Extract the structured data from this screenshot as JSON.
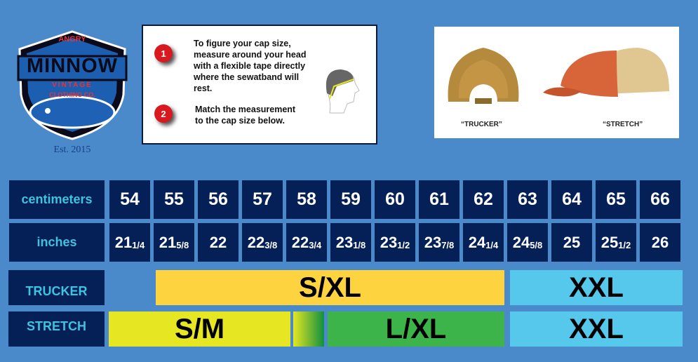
{
  "logo": {
    "line1": "ANGRY",
    "line2": "MINNOW",
    "line3": "VINTAGE",
    "line4": "CLOTHING CO.",
    "est": "Est. 2015"
  },
  "howto": {
    "steps": [
      {
        "number": "1",
        "text": "To figure your cap size, measure around your head with a flexible tape directly where the sewatband will rest."
      },
      {
        "number": "2",
        "text": "Match the measurement to the cap size below."
      }
    ]
  },
  "caps": {
    "trucker_label": "“TRUCKER”",
    "stretch_label": "“STRETCH”"
  },
  "table": {
    "cm_label": "centimeters",
    "in_label": "inches",
    "centimeters": [
      "54",
      "55",
      "56",
      "57",
      "58",
      "59",
      "60",
      "61",
      "62",
      "63",
      "64",
      "65",
      "66"
    ],
    "inches": [
      [
        "21",
        "1/4"
      ],
      [
        "21",
        "5/8"
      ],
      [
        "22",
        ""
      ],
      [
        "22",
        "3/8"
      ],
      [
        "22",
        "3/4"
      ],
      [
        "23",
        "1/8"
      ],
      [
        "23",
        "1/2"
      ],
      [
        "23",
        "7/8"
      ],
      [
        "24",
        "1/4"
      ],
      [
        "24",
        "5/8"
      ],
      [
        "25",
        ""
      ],
      [
        "25",
        "1/2"
      ],
      [
        "26",
        ""
      ]
    ]
  },
  "sizes": {
    "trucker_label": "TRUCKER",
    "stretch_label": "STRETCH",
    "trucker": [
      {
        "label": "S/XL",
        "from_cm": 55,
        "to_cm": 62,
        "color": "#fdd43f"
      },
      {
        "label": "XXL",
        "from_cm": 63,
        "to_cm": 66,
        "color": "#55c8ec"
      }
    ],
    "stretch": [
      {
        "label": "S/M",
        "from_cm": 54,
        "to_cm": 57,
        "color": "#e6e622"
      },
      {
        "label": "",
        "from_cm": 58,
        "to_cm": 58,
        "color": "gradient"
      },
      {
        "label": "L/XL",
        "from_cm": 59,
        "to_cm": 62,
        "color": "#3db449"
      },
      {
        "label": "XXL",
        "from_cm": 63,
        "to_cm": 66,
        "color": "#55c8ec"
      }
    ]
  }
}
